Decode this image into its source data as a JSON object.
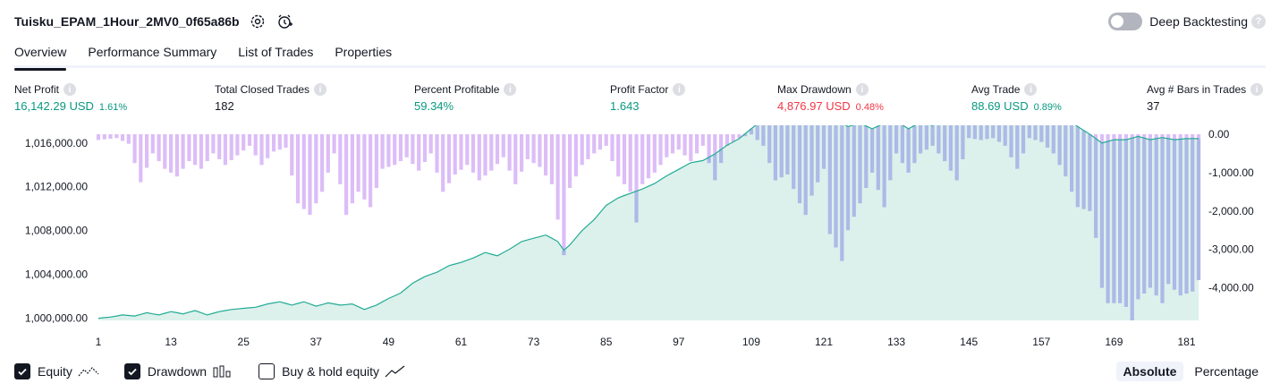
{
  "header": {
    "title": "Tuisku_EPAM_1Hour_2MV0_0f65a86b",
    "deep_backtesting_label": "Deep Backtesting",
    "help": "?"
  },
  "tabs": [
    {
      "label": "Overview"
    },
    {
      "label": "Performance Summary"
    },
    {
      "label": "List of Trades"
    },
    {
      "label": "Properties"
    }
  ],
  "metrics": [
    {
      "label": "Net Profit",
      "value": "16,142.29 USD",
      "pct": "1.61%",
      "color": "#089981"
    },
    {
      "label": "Total Closed Trades",
      "value": "182",
      "pct": "",
      "color": "#131722"
    },
    {
      "label": "Percent Profitable",
      "value": "59.34%",
      "pct": "",
      "color": "#089981"
    },
    {
      "label": "Profit Factor",
      "value": "1.643",
      "pct": "",
      "color": "#089981"
    },
    {
      "label": "Max Drawdown",
      "value": "4,876.97 USD",
      "pct": "0.48%",
      "color": "#f23645"
    },
    {
      "label": "Avg Trade",
      "value": "88.69 USD",
      "pct": "0.89%",
      "color": "#089981"
    },
    {
      "label": "Avg # Bars in Trades",
      "value": "37",
      "pct": "",
      "color": "#131722"
    }
  ],
  "info_glyph": "i",
  "chart_data": {
    "type": "area",
    "x_ticks": [
      1,
      13,
      25,
      37,
      49,
      61,
      73,
      85,
      97,
      109,
      121,
      133,
      145,
      157,
      169,
      181
    ],
    "x_range": [
      1,
      183
    ],
    "equity_axis": {
      "ticks": [
        "1,000,000.00",
        "1,004,000.00",
        "1,008,000.00",
        "1,012,000.00",
        "1,016,000.00"
      ],
      "values": [
        1000000,
        1004000,
        1008000,
        1012000,
        1016000
      ],
      "range": [
        999800,
        1016800
      ]
    },
    "drawdown_axis": {
      "ticks": [
        "0.00",
        "-1,000.00",
        "-2,000.00",
        "-3,000.00",
        "-4,000.00"
      ],
      "values": [
        0,
        -1000,
        -2000,
        -3000,
        -4000
      ],
      "range": [
        -4850,
        0
      ]
    },
    "equity_keypoints": [
      [
        1,
        1000000
      ],
      [
        3,
        1000100
      ],
      [
        5,
        1000300
      ],
      [
        7,
        1000200
      ],
      [
        9,
        1000500
      ],
      [
        11,
        1000300
      ],
      [
        13,
        1000600
      ],
      [
        15,
        1000400
      ],
      [
        17,
        1000700
      ],
      [
        19,
        1000300
      ],
      [
        21,
        1000600
      ],
      [
        23,
        1000800
      ],
      [
        25,
        1000900
      ],
      [
        27,
        1001000
      ],
      [
        29,
        1001300
      ],
      [
        31,
        1001500
      ],
      [
        33,
        1001200
      ],
      [
        35,
        1001500
      ],
      [
        37,
        1001100
      ],
      [
        39,
        1001400
      ],
      [
        41,
        1001200
      ],
      [
        43,
        1001300
      ],
      [
        45,
        1000800
      ],
      [
        47,
        1001200
      ],
      [
        49,
        1001800
      ],
      [
        51,
        1002300
      ],
      [
        53,
        1003200
      ],
      [
        55,
        1003800
      ],
      [
        57,
        1004200
      ],
      [
        59,
        1004800
      ],
      [
        61,
        1005100
      ],
      [
        63,
        1005500
      ],
      [
        65,
        1006000
      ],
      [
        67,
        1005700
      ],
      [
        69,
        1006300
      ],
      [
        71,
        1007000
      ],
      [
        73,
        1007300
      ],
      [
        75,
        1007600
      ],
      [
        77,
        1007000
      ],
      [
        78,
        1006200
      ],
      [
        79,
        1006700
      ],
      [
        81,
        1008000
      ],
      [
        83,
        1009000
      ],
      [
        85,
        1010300
      ],
      [
        87,
        1011000
      ],
      [
        89,
        1011400
      ],
      [
        91,
        1011800
      ],
      [
        93,
        1012300
      ],
      [
        95,
        1013000
      ],
      [
        97,
        1013600
      ],
      [
        99,
        1014200
      ],
      [
        101,
        1014400
      ],
      [
        103,
        1015000
      ],
      [
        105,
        1015800
      ],
      [
        107,
        1016400
      ],
      [
        109,
        1017300
      ],
      [
        111,
        1018200
      ],
      [
        113,
        1018600
      ],
      [
        115,
        1018300
      ],
      [
        117,
        1018300
      ],
      [
        119,
        1017900
      ],
      [
        121,
        1017800
      ],
      [
        123,
        1018100
      ],
      [
        125,
        1017500
      ],
      [
        127,
        1017800
      ],
      [
        129,
        1017300
      ],
      [
        131,
        1017800
      ],
      [
        133,
        1018000
      ],
      [
        135,
        1017300
      ],
      [
        137,
        1017900
      ],
      [
        139,
        1017600
      ],
      [
        141,
        1018200
      ],
      [
        143,
        1018500
      ],
      [
        145,
        1018900
      ],
      [
        147,
        1018700
      ],
      [
        149,
        1018900
      ],
      [
        151,
        1018700
      ],
      [
        153,
        1018800
      ],
      [
        155,
        1018900
      ],
      [
        157,
        1018700
      ],
      [
        159,
        1018500
      ],
      [
        161,
        1018300
      ],
      [
        163,
        1017500
      ],
      [
        165,
        1016800
      ],
      [
        167,
        1016000
      ],
      [
        169,
        1016300
      ],
      [
        171,
        1016300
      ],
      [
        173,
        1016600
      ],
      [
        175,
        1016300
      ],
      [
        177,
        1016500
      ],
      [
        179,
        1016300
      ],
      [
        181,
        1016400
      ],
      [
        183,
        1016400
      ]
    ],
    "drawdown_keypoints": [
      [
        1,
        -150
      ],
      [
        4,
        -100
      ],
      [
        6,
        -250
      ],
      [
        8,
        -1250
      ],
      [
        10,
        -500
      ],
      [
        12,
        -900
      ],
      [
        14,
        -1100
      ],
      [
        16,
        -700
      ],
      [
        18,
        -900
      ],
      [
        20,
        -500
      ],
      [
        22,
        -800
      ],
      [
        24,
        -550
      ],
      [
        26,
        -300
      ],
      [
        28,
        -800
      ],
      [
        30,
        -450
      ],
      [
        32,
        -350
      ],
      [
        34,
        -1800
      ],
      [
        36,
        -2100
      ],
      [
        38,
        -1500
      ],
      [
        40,
        -500
      ],
      [
        42,
        -2100
      ],
      [
        44,
        -1500
      ],
      [
        46,
        -1900
      ],
      [
        48,
        -900
      ],
      [
        50,
        -800
      ],
      [
        52,
        -600
      ],
      [
        54,
        -950
      ],
      [
        56,
        -500
      ],
      [
        58,
        -1500
      ],
      [
        60,
        -1050
      ],
      [
        62,
        -800
      ],
      [
        64,
        -1200
      ],
      [
        66,
        -950
      ],
      [
        68,
        -600
      ],
      [
        70,
        -1300
      ],
      [
        72,
        -650
      ],
      [
        74,
        -850
      ],
      [
        76,
        -1300
      ],
      [
        78,
        -3150
      ],
      [
        79,
        -1400
      ],
      [
        81,
        -800
      ],
      [
        83,
        -500
      ],
      [
        85,
        -300
      ],
      [
        87,
        -1100
      ],
      [
        89,
        -1500
      ],
      [
        90,
        -2300
      ],
      [
        91,
        -1300
      ],
      [
        93,
        -1000
      ],
      [
        95,
        -600
      ],
      [
        97,
        -400
      ],
      [
        99,
        -700
      ],
      [
        101,
        -300
      ],
      [
        103,
        -1200
      ],
      [
        105,
        -300
      ],
      [
        107,
        -100
      ],
      [
        109,
        0
      ],
      [
        111,
        -300
      ],
      [
        113,
        -1200
      ],
      [
        115,
        -1050
      ],
      [
        117,
        -1800
      ],
      [
        118,
        -2100
      ],
      [
        119,
        -1600
      ],
      [
        121,
        -900
      ],
      [
        122,
        -2600
      ],
      [
        124,
        -3300
      ],
      [
        125,
        -2500
      ],
      [
        127,
        -1800
      ],
      [
        129,
        -1000
      ],
      [
        131,
        -1900
      ],
      [
        133,
        -500
      ],
      [
        135,
        -1000
      ],
      [
        137,
        -500
      ],
      [
        139,
        -300
      ],
      [
        141,
        -700
      ],
      [
        143,
        -1200
      ],
      [
        145,
        -100
      ],
      [
        147,
        -150
      ],
      [
        149,
        -100
      ],
      [
        151,
        -300
      ],
      [
        153,
        -900
      ],
      [
        155,
        -100
      ],
      [
        157,
        -200
      ],
      [
        159,
        -500
      ],
      [
        161,
        -1100
      ],
      [
        163,
        -1900
      ],
      [
        165,
        -2000
      ],
      [
        166,
        -2700
      ],
      [
        167,
        -4000
      ],
      [
        168,
        -4400
      ],
      [
        170,
        -4400
      ],
      [
        171,
        -4500
      ],
      [
        172,
        -4850
      ],
      [
        173,
        -4300
      ],
      [
        175,
        -4000
      ],
      [
        177,
        -4400
      ],
      [
        178,
        -3900
      ],
      [
        180,
        -4200
      ],
      [
        182,
        -4100
      ],
      [
        183,
        -3800
      ]
    ],
    "colors": {
      "equity_line": "#22ab94",
      "equity_fill": "#d6efe9",
      "drawdown": "#dcbdf7",
      "overlap": "#a8b4e6"
    },
    "grid": false
  },
  "legend": {
    "equity": "Equity",
    "drawdown": "Drawdown",
    "buy_hold": "Buy & hold equity",
    "absolute": "Absolute",
    "percentage": "Percentage"
  }
}
